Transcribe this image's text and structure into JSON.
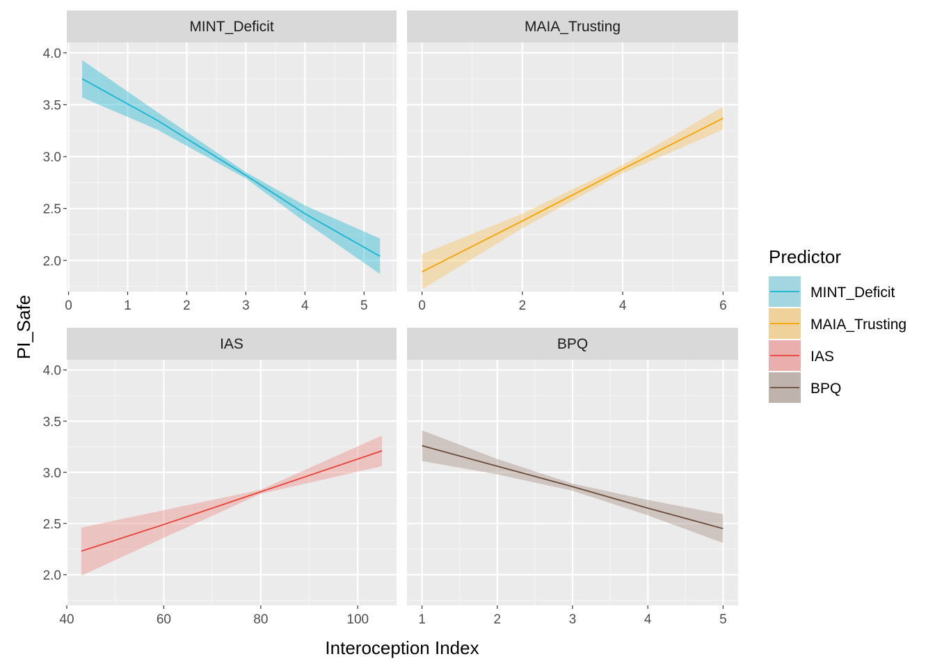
{
  "chart_data": {
    "type": "line",
    "xlabel": "Interoception Index",
    "ylabel": "PI_Safe",
    "ylim": [
      1.7,
      4.1
    ],
    "yticks": [
      2.0,
      2.5,
      3.0,
      3.5,
      4.0
    ],
    "ytick_labels": [
      "2.0",
      "2.5",
      "3.0",
      "3.5",
      "4.0"
    ],
    "grid": true,
    "legend": {
      "title": "Predictor",
      "position": "right",
      "entries": [
        {
          "label": "MINT_Deficit",
          "color": "#1ab3d1"
        },
        {
          "label": "MAIA_Trusting",
          "color": "#f5a300"
        },
        {
          "label": "IAS",
          "color": "#e84036"
        },
        {
          "label": "BPQ",
          "color": "#6b4a3a"
        }
      ]
    },
    "panels": [
      {
        "name": "MINT_Deficit",
        "color": "#1ab3d1",
        "fill": "#1ab3d1",
        "xlim": [
          -0.03,
          5.55
        ],
        "xticks": [
          0,
          1,
          2,
          3,
          4,
          5
        ],
        "xtick_labels": [
          "0",
          "1",
          "2",
          "3",
          "4",
          "5"
        ],
        "x": [
          0.23,
          1.5,
          3.0,
          4.0,
          5.27
        ],
        "y": [
          3.75,
          3.35,
          2.82,
          2.45,
          2.04
        ],
        "lower": [
          3.57,
          3.26,
          2.79,
          2.37,
          1.87
        ],
        "upper": [
          3.93,
          3.43,
          2.85,
          2.53,
          2.21
        ]
      },
      {
        "name": "MAIA_Trusting",
        "color": "#f5a300",
        "fill": "#f5c15a",
        "xlim": [
          -0.3,
          6.3
        ],
        "xticks": [
          0,
          2,
          4,
          6
        ],
        "xtick_labels": [
          "0",
          "2",
          "4",
          "6"
        ],
        "x": [
          0,
          2,
          4,
          6
        ],
        "y": [
          1.89,
          2.38,
          2.88,
          3.37
        ],
        "lower": [
          1.72,
          2.31,
          2.84,
          3.26
        ],
        "upper": [
          2.06,
          2.45,
          2.92,
          3.48
        ]
      },
      {
        "name": "IAS",
        "color": "#e84036",
        "fill": "#eb8a83",
        "xlim": [
          40,
          108
        ],
        "xticks": [
          40,
          60,
          80,
          100
        ],
        "xtick_labels": [
          "40",
          "60",
          "80",
          "100"
        ],
        "x": [
          43,
          60,
          80,
          105
        ],
        "y": [
          2.23,
          2.49,
          2.81,
          3.21
        ],
        "lower": [
          1.99,
          2.36,
          2.79,
          3.06
        ],
        "upper": [
          2.46,
          2.63,
          2.83,
          3.36
        ]
      },
      {
        "name": "BPQ",
        "color": "#6b4a3a",
        "fill": "#a38c80",
        "xlim": [
          0.8,
          5.2
        ],
        "xticks": [
          1,
          2,
          3,
          4,
          5
        ],
        "xtick_labels": [
          "1",
          "2",
          "3",
          "4",
          "5"
        ],
        "x": [
          1,
          2,
          3,
          4,
          5
        ],
        "y": [
          3.26,
          3.06,
          2.86,
          2.65,
          2.45
        ],
        "lower": [
          3.11,
          2.98,
          2.82,
          2.58,
          2.31
        ],
        "upper": [
          3.41,
          3.13,
          2.89,
          2.73,
          2.59
        ]
      }
    ]
  }
}
